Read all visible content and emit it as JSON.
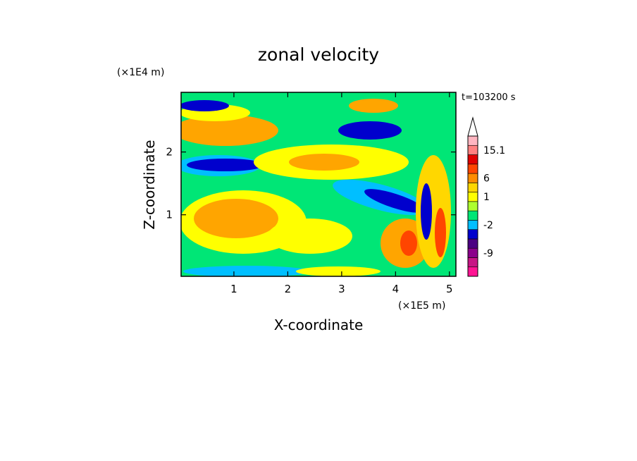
{
  "chart_data": {
    "type": "heatmap",
    "title": "zonal velocity",
    "xlabel": "X-coordinate",
    "ylabel": "Z-coordinate",
    "x_unit": "(×1E5 m)",
    "y_unit": "(×1E4 m)",
    "time_label": "t=103200 s",
    "xlim": [
      0.02,
      5.12
    ],
    "ylim": [
      0.02,
      2.95
    ],
    "x_ticks": [
      {
        "value": 1,
        "label": "1"
      },
      {
        "value": 2,
        "label": "2"
      },
      {
        "value": 3,
        "label": "3"
      },
      {
        "value": 4,
        "label": "4"
      },
      {
        "value": 5,
        "label": "5"
      }
    ],
    "y_ticks": [
      {
        "value": 1,
        "label": "1"
      },
      {
        "value": 2,
        "label": "2"
      }
    ],
    "colorbar": {
      "levels": [
        {
          "color": "#ff1493",
          "label": ""
        },
        {
          "color": "#c71585",
          "label": ""
        },
        {
          "color": "#8b008b",
          "label": "-9"
        },
        {
          "color": "#4b0082",
          "label": ""
        },
        {
          "color": "#0000cd",
          "label": ""
        },
        {
          "color": "#00bfff",
          "label": "-2"
        },
        {
          "color": "#00e676",
          "label": ""
        },
        {
          "color": "#adff2f",
          "label": ""
        },
        {
          "color": "#ffff00",
          "label": "1"
        },
        {
          "color": "#ffd700",
          "label": ""
        },
        {
          "color": "#ff8c00",
          "label": "6"
        },
        {
          "color": "#ff4500",
          "label": ""
        },
        {
          "color": "#e00000",
          "label": ""
        },
        {
          "color": "#ff8080",
          "label": "15.1"
        },
        {
          "color": "#ffb6c1",
          "label": ""
        }
      ],
      "top_arrow_color": "#ffffff"
    }
  }
}
